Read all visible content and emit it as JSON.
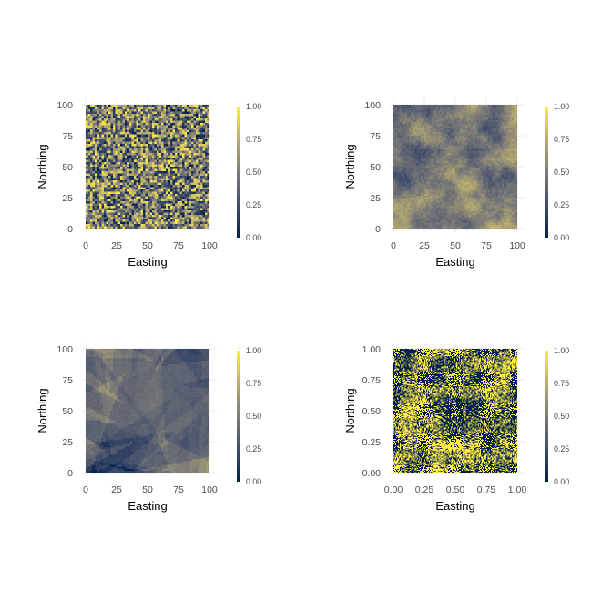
{
  "colors": {
    "low": "#00204d",
    "mid": "#7c7b78",
    "high": "#ffea46",
    "background": "#ffffff",
    "grid": "#ebebeb"
  },
  "chart_data": [
    {
      "type": "heatmap",
      "pattern": "random",
      "xlabel": "Easting",
      "ylabel": "Northing",
      "xlim": [
        0,
        100
      ],
      "ylim": [
        0,
        100
      ],
      "xticks": [
        "0",
        "25",
        "50",
        "75",
        "100"
      ],
      "yticks": [
        "0",
        "25",
        "50",
        "75",
        "100"
      ],
      "colorbar": {
        "range": [
          0,
          1
        ],
        "ticks": [
          "0.00",
          "0.25",
          "0.50",
          "0.75",
          "1.00"
        ]
      }
    },
    {
      "type": "heatmap",
      "pattern": "smooth",
      "xlabel": "Easting",
      "ylabel": "Northing",
      "xlim": [
        0,
        100
      ],
      "ylim": [
        0,
        100
      ],
      "xticks": [
        "0",
        "25",
        "50",
        "75",
        "100"
      ],
      "yticks": [
        "0",
        "25",
        "50",
        "75",
        "100"
      ],
      "colorbar": {
        "range": [
          0,
          1
        ],
        "ticks": [
          "0.00",
          "0.25",
          "0.50",
          "0.75",
          "1.00"
        ]
      }
    },
    {
      "type": "heatmap",
      "pattern": "overlapping-rays",
      "xlabel": "Easting",
      "ylabel": "Northing",
      "xlim": [
        0,
        100
      ],
      "ylim": [
        0,
        100
      ],
      "xticks": [
        "0",
        "25",
        "50",
        "75",
        "100"
      ],
      "yticks": [
        "0",
        "25",
        "50",
        "75",
        "100"
      ],
      "colorbar": {
        "range": [
          0,
          1
        ],
        "ticks": [
          "0.00",
          "0.25",
          "0.50",
          "0.75",
          "1.00"
        ]
      }
    },
    {
      "type": "heatmap",
      "pattern": "binary-clustered",
      "xlabel": "Easting",
      "ylabel": "Northing",
      "xlim": [
        0,
        1
      ],
      "ylim": [
        0,
        1
      ],
      "xticks": [
        "0.00",
        "0.25",
        "0.50",
        "0.75",
        "1.00"
      ],
      "yticks": [
        "0.00",
        "0.25",
        "0.50",
        "0.75",
        "1.00"
      ],
      "colorbar": {
        "range": [
          0,
          1
        ],
        "ticks": [
          "0.00",
          "0.25",
          "0.50",
          "0.75",
          "1.00"
        ]
      }
    }
  ]
}
